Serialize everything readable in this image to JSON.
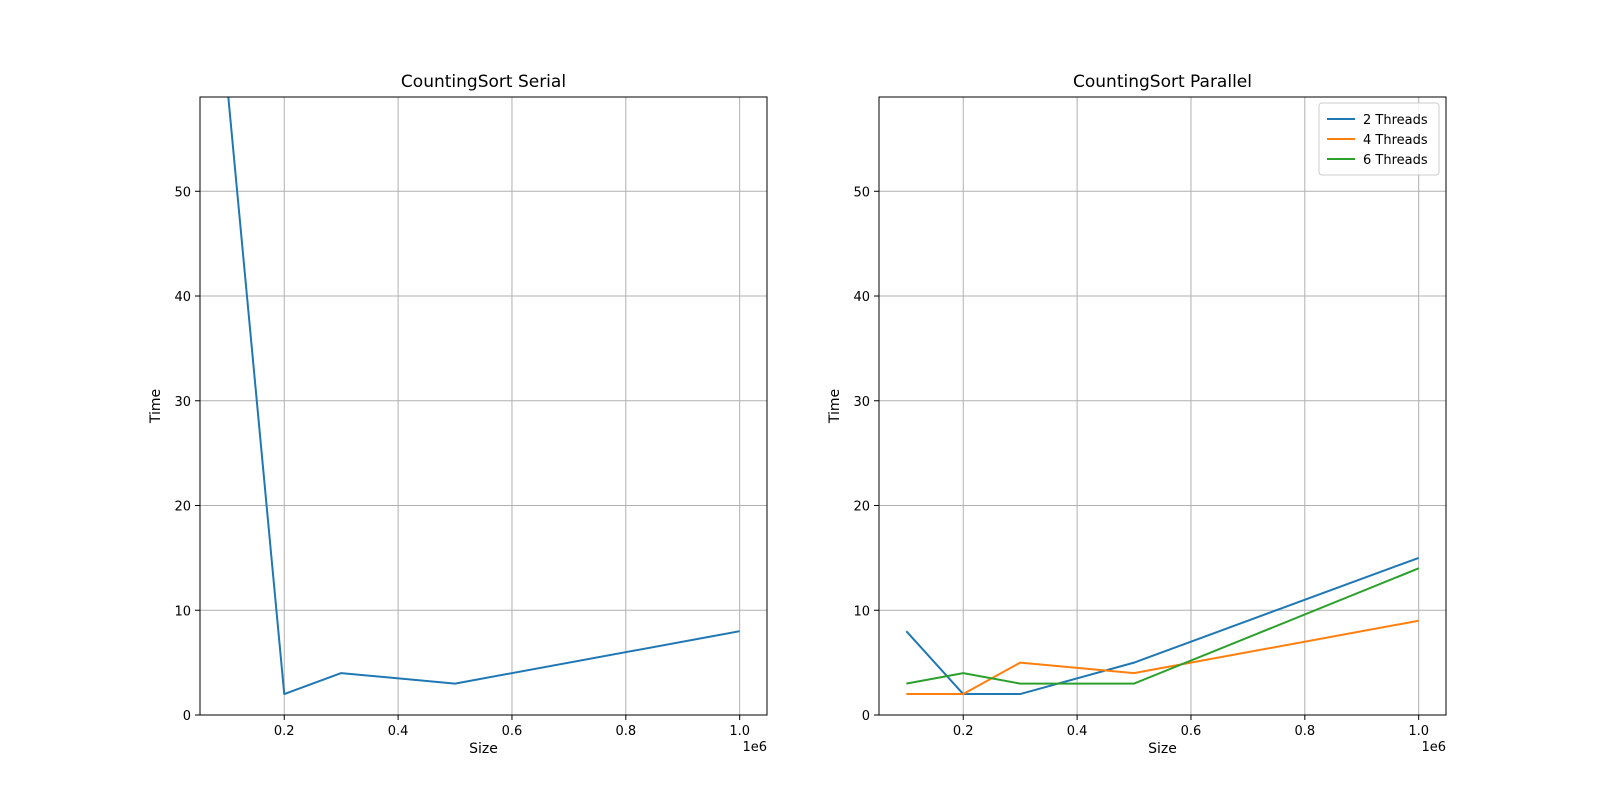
{
  "chart_data": [
    {
      "type": "line",
      "title": "CountingSort Serial",
      "xlabel": "Size",
      "ylabel": "Time",
      "x_offset_label": "1e6",
      "xlim": [
        52000,
        1048000
      ],
      "ylim": [
        0,
        59
      ],
      "xticks": [
        200000,
        400000,
        600000,
        800000,
        1000000
      ],
      "xtick_labels": [
        "0.2",
        "0.4",
        "0.6",
        "0.8",
        "1.0"
      ],
      "yticks": [
        0,
        10,
        20,
        30,
        40,
        50
      ],
      "ytick_labels": [
        "0",
        "10",
        "20",
        "30",
        "40",
        "50"
      ],
      "grid": true,
      "x": [
        100000,
        200000,
        300000,
        500000,
        1000000
      ],
      "series": [
        {
          "color": "#1f77b4",
          "values": [
            60,
            2,
            4,
            3,
            8
          ]
        }
      ]
    },
    {
      "type": "line",
      "title": "CountingSort Parallel",
      "xlabel": "Size",
      "ylabel": "Time",
      "x_offset_label": "1e6",
      "xlim": [
        52000,
        1048000
      ],
      "ylim": [
        0,
        59
      ],
      "xticks": [
        200000,
        400000,
        600000,
        800000,
        1000000
      ],
      "xtick_labels": [
        "0.2",
        "0.4",
        "0.6",
        "0.8",
        "1.0"
      ],
      "yticks": [
        0,
        10,
        20,
        30,
        40,
        50
      ],
      "ytick_labels": [
        "0",
        "10",
        "20",
        "30",
        "40",
        "50"
      ],
      "grid": true,
      "legend": "top-right",
      "x": [
        100000,
        200000,
        300000,
        500000,
        1000000
      ],
      "series": [
        {
          "name": "2 Threads",
          "color": "#1f77b4",
          "values": [
            8,
            2,
            2,
            5,
            15
          ]
        },
        {
          "name": "4 Threads",
          "color": "#ff7f0e",
          "values": [
            2,
            2,
            5,
            4,
            9
          ]
        },
        {
          "name": "6 Threads",
          "color": "#2ca02c",
          "values": [
            3,
            4,
            3,
            3,
            14
          ]
        }
      ]
    }
  ]
}
